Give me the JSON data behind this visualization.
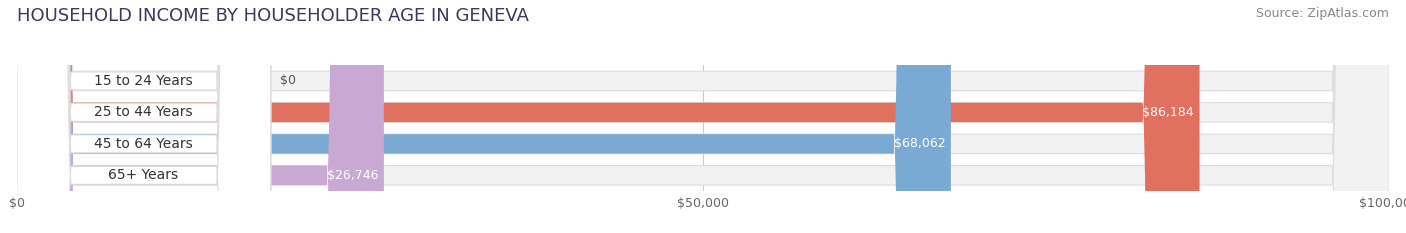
{
  "title": "HOUSEHOLD INCOME BY HOUSEHOLDER AGE IN GENEVA",
  "source": "Source: ZipAtlas.com",
  "categories": [
    "15 to 24 Years",
    "25 to 44 Years",
    "45 to 64 Years",
    "65+ Years"
  ],
  "values": [
    0,
    86184,
    68062,
    26746
  ],
  "bar_colors": [
    "#f0c080",
    "#e07060",
    "#7aaad4",
    "#c9a8d4"
  ],
  "bar_bg_color": "#f2f2f2",
  "bar_border_color": "#dddddd",
  "label_texts": [
    "$0",
    "$86,184",
    "$68,062",
    "$26,746"
  ],
  "x_ticks": [
    0,
    50000,
    100000
  ],
  "x_tick_labels": [
    "$0",
    "$50,000",
    "$100,000"
  ],
  "xlim": [
    0,
    100000
  ],
  "title_fontsize": 13,
  "source_fontsize": 9,
  "tick_fontsize": 9,
  "bar_label_fontsize": 9,
  "cat_label_fontsize": 10,
  "background_color": "#ffffff",
  "figsize": [
    14.06,
    2.33
  ],
  "dpi": 100
}
